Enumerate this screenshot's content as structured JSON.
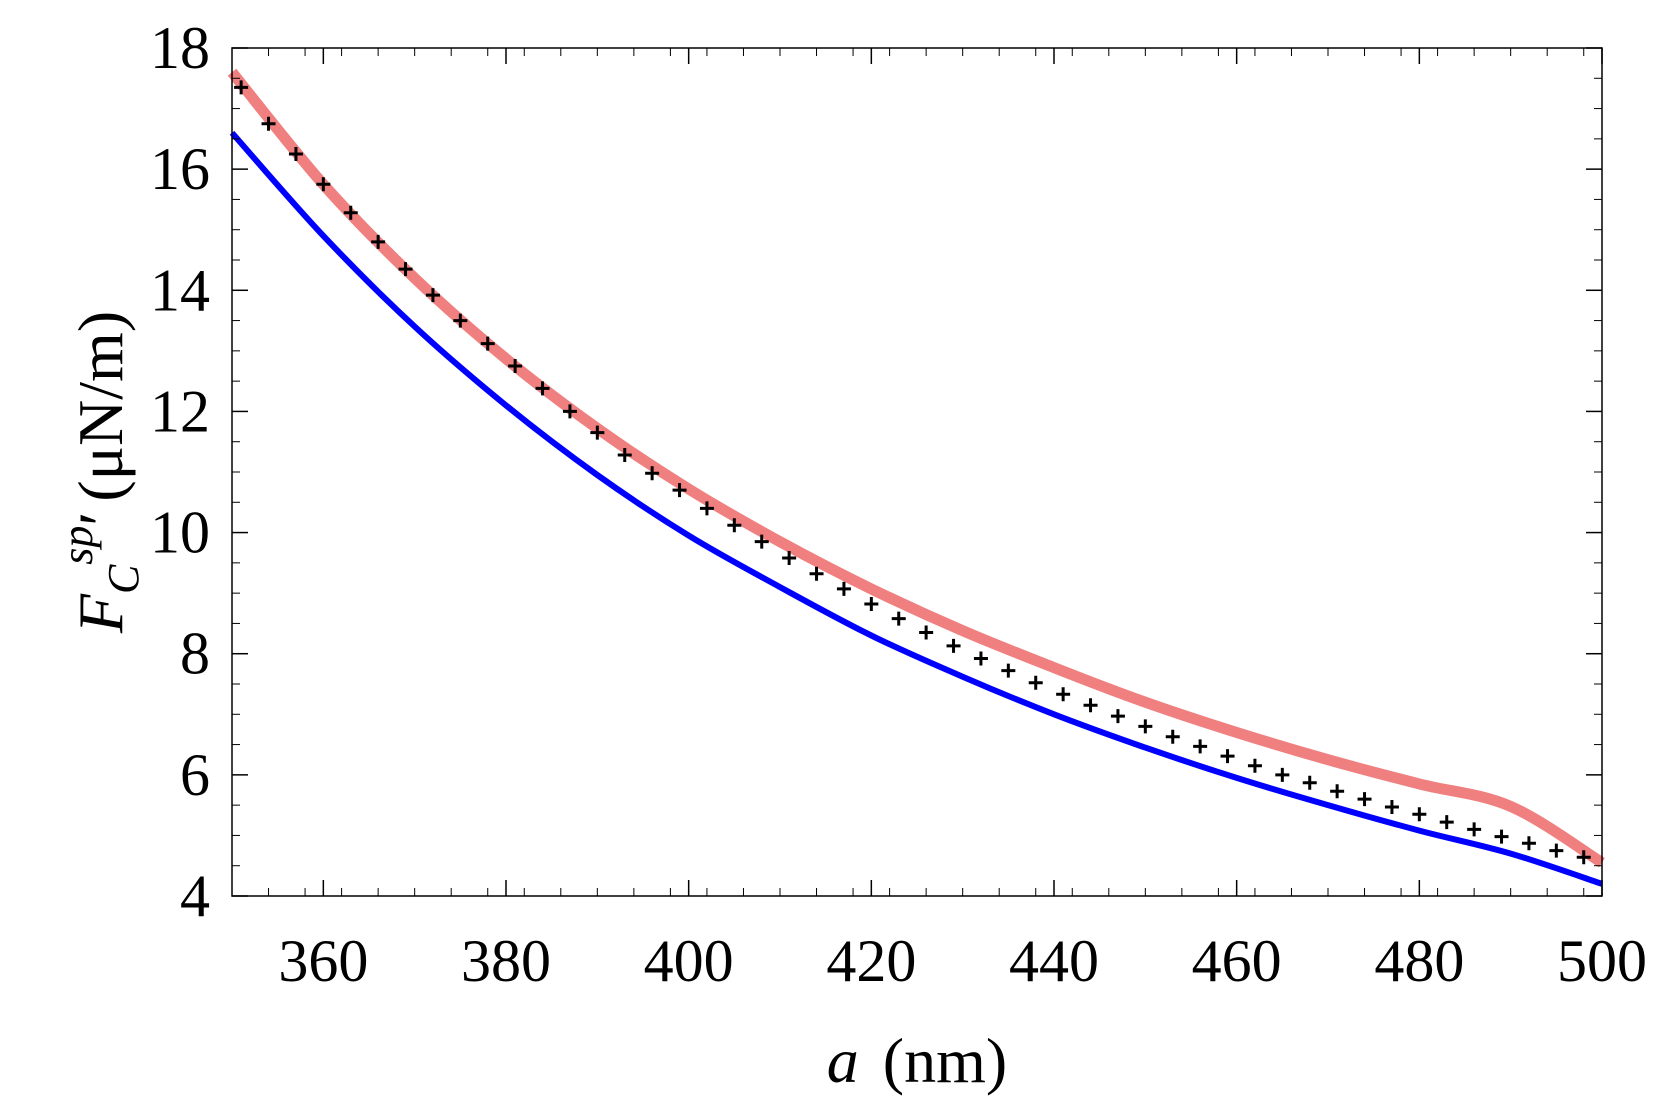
{
  "chart_data": {
    "type": "line",
    "xlabel": {
      "var": "a",
      "unit": "(nm)"
    },
    "ylabel": {
      "var": "F",
      "sub": "C",
      "sup": "sp",
      "prime": "′",
      "unit": "(μN/m)"
    },
    "xlim": [
      350,
      500
    ],
    "ylim": [
      4,
      18
    ],
    "x_ticks": [
      360,
      380,
      400,
      420,
      440,
      460,
      480,
      500
    ],
    "y_ticks": [
      4,
      6,
      8,
      10,
      12,
      14,
      16,
      18
    ],
    "grid": false,
    "series": [
      {
        "style": "band",
        "color": "#f08080",
        "x": [
          350,
          360,
          370,
          380,
          390,
          400,
          410,
          420,
          430,
          440,
          450,
          460,
          470,
          480,
          490,
          500
        ],
        "values": [
          17.6,
          15.75,
          14.2,
          12.87,
          11.72,
          10.72,
          9.85,
          9.07,
          8.38,
          7.77,
          7.2,
          6.7,
          6.25,
          5.85,
          5.48,
          4.55
        ]
      },
      {
        "style": "line",
        "color": "#0000ff",
        "x": [
          350,
          360,
          370,
          380,
          390,
          400,
          410,
          420,
          430,
          440,
          450,
          460,
          470,
          480,
          490,
          500
        ],
        "values": [
          16.6,
          14.9,
          13.4,
          12.1,
          10.95,
          9.95,
          9.1,
          8.3,
          7.62,
          7.0,
          6.45,
          5.95,
          5.5,
          5.08,
          4.7,
          4.2
        ]
      },
      {
        "style": "markers",
        "marker": "+",
        "color": "#000000",
        "x": [
          351,
          354,
          357,
          360,
          363,
          366,
          369,
          372,
          375,
          378,
          381,
          384,
          387,
          390,
          393,
          396,
          399,
          402,
          405,
          408,
          411,
          414,
          417,
          420,
          423,
          426,
          429,
          432,
          435,
          438,
          441,
          444,
          447,
          450,
          453,
          456,
          459,
          462,
          465,
          468,
          471,
          474,
          477,
          480,
          483,
          486,
          489,
          492,
          495,
          498
        ],
        "values": [
          17.35,
          16.75,
          16.25,
          15.75,
          15.28,
          14.8,
          14.35,
          13.92,
          13.5,
          13.12,
          12.75,
          12.38,
          12.0,
          11.65,
          11.28,
          10.98,
          10.7,
          10.4,
          10.12,
          9.85,
          9.58,
          9.32,
          9.07,
          8.82,
          8.58,
          8.35,
          8.13,
          7.92,
          7.72,
          7.52,
          7.33,
          7.15,
          6.97,
          6.8,
          6.63,
          6.47,
          6.31,
          6.15,
          6.0,
          5.87,
          5.73,
          5.6,
          5.47,
          5.35,
          5.22,
          5.1,
          4.98,
          4.87,
          4.75,
          4.64
        ]
      }
    ]
  }
}
